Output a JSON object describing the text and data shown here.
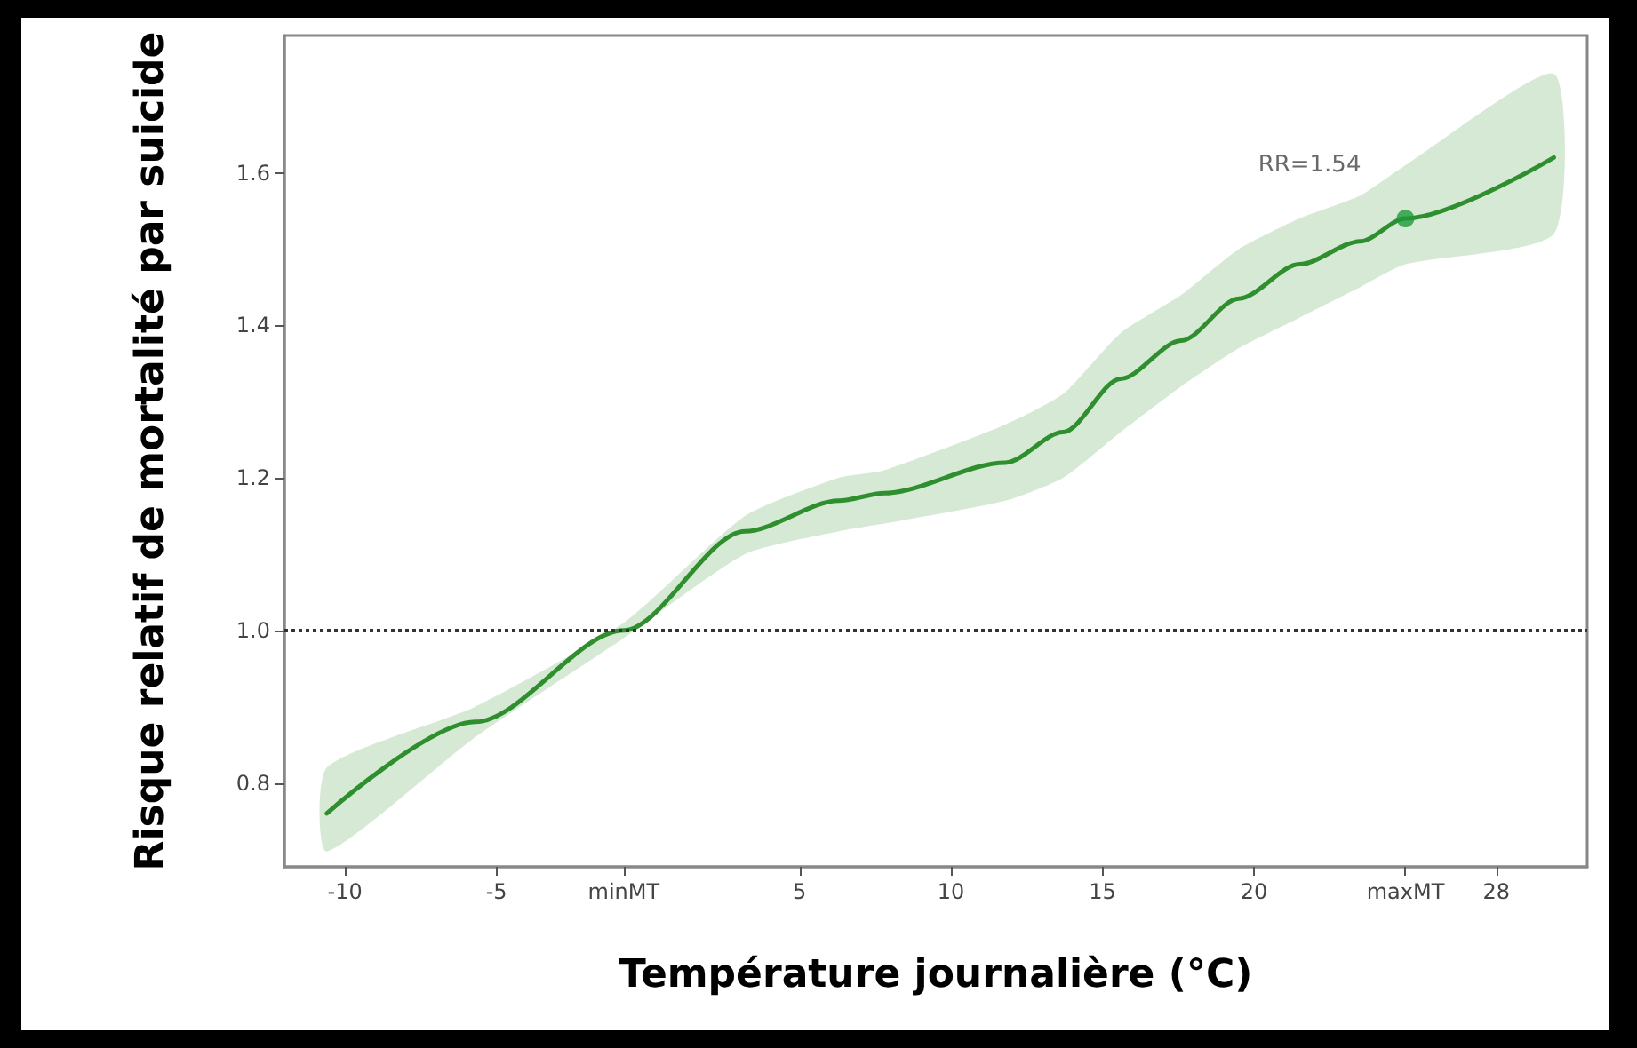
{
  "chart_data": {
    "type": "line",
    "xlabel": "Température journalière (°C)",
    "ylabel": "Risque relatif de mortalité par suicide",
    "xlim": [
      -12,
      31
    ],
    "ylim": [
      0.69,
      1.78
    ],
    "xticks": [
      -10,
      -5,
      {
        "value": -0.8,
        "label": "minMT"
      },
      5,
      10,
      15,
      20,
      {
        "value": 25,
        "label": "maxMT"
      },
      28
    ],
    "yticks": [
      0.8,
      {
        "value": 1.0,
        "label": "1.0"
      },
      1.2,
      1.4,
      1.6
    ],
    "grid": false,
    "series": [
      {
        "color": "#2f8f2f",
        "marker": "none",
        "x": [
          -10.6,
          -5.7,
          -0.8,
          3.2,
          6.3,
          7.8,
          11.8,
          13.7,
          15.6,
          17.6,
          19.5,
          21.5,
          23.5,
          25,
          29.9
        ],
        "values": [
          0.76,
          0.88,
          1.0,
          1.13,
          1.17,
          1.18,
          1.22,
          1.26,
          1.33,
          1.38,
          1.435,
          1.48,
          1.51,
          1.54,
          1.62
        ],
        "lower": [
          0.71,
          0.86,
          0.99,
          1.1,
          1.13,
          1.14,
          1.17,
          1.2,
          1.26,
          1.32,
          1.37,
          1.41,
          1.45,
          1.48,
          1.52
        ],
        "upper": [
          0.82,
          0.9,
          1.01,
          1.15,
          1.2,
          1.21,
          1.27,
          1.31,
          1.39,
          1.44,
          1.5,
          1.54,
          1.57,
          1.61,
          1.73
        ]
      },
      {
        "type": "scatter",
        "color": "#1e9a3a",
        "marker": "circle",
        "x": [
          25
        ],
        "values": [
          1.54
        ]
      }
    ],
    "ref_lines": [
      {
        "axis": "y",
        "value": 1.0,
        "color": "#333333",
        "line_style": "dotted"
      }
    ],
    "annotations": [
      {
        "text": "RR=1.54",
        "x": 25,
        "y": 1.54
      }
    ]
  }
}
